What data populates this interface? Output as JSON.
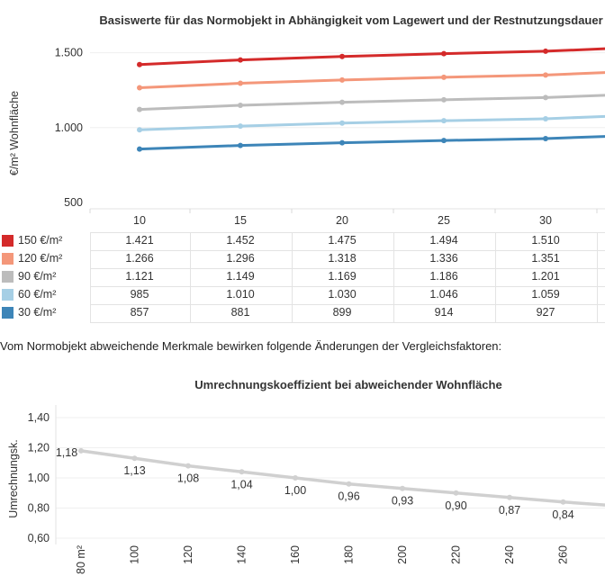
{
  "chart_data": [
    {
      "type": "line",
      "title": "Basiswerte für das Normobjekt in Abhängigkeit vom Lagewert und der Restnutzungsdauer",
      "ylabel": "€/m² Wohnfläche",
      "xlabel": "",
      "categories": [
        "10",
        "15",
        "20",
        "25",
        "30"
      ],
      "yticks": [
        "500",
        "1.000",
        "1.500"
      ],
      "ylim": [
        500,
        1500
      ],
      "right_edge_values": [
        1527,
        1368,
        1216,
        1075,
        941
      ],
      "grid": "horizontal",
      "series": [
        {
          "name": "150 €/m²",
          "color": "#d42a2a",
          "values": [
            1421,
            1452,
            1475,
            1494,
            1510
          ],
          "labels": [
            "1.421",
            "1.452",
            "1.475",
            "1.494",
            "1.510"
          ]
        },
        {
          "name": "120 €/m²",
          "color": "#f4977a",
          "values": [
            1266,
            1296,
            1318,
            1336,
            1351
          ],
          "labels": [
            "1.266",
            "1.296",
            "1.318",
            "1.336",
            "1.351"
          ]
        },
        {
          "name": "90 €/m²",
          "color": "#bcbcbc",
          "values": [
            1121,
            1149,
            1169,
            1186,
            1201
          ],
          "labels": [
            "1.121",
            "1.149",
            "1.169",
            "1.186",
            "1.201"
          ]
        },
        {
          "name": "60 €/m²",
          "color": "#a6cfe5",
          "values": [
            985,
            1010,
            1030,
            1046,
            1059
          ],
          "labels": [
            "985",
            "1.010",
            "1.030",
            "1.046",
            "1.059"
          ]
        },
        {
          "name": "30 €/m²",
          "color": "#3d85b8",
          "values": [
            857,
            881,
            899,
            914,
            927
          ],
          "labels": [
            "857",
            "881",
            "899",
            "914",
            "927"
          ]
        }
      ]
    },
    {
      "type": "line",
      "title": "Umrechnungskoeffizient bei abweichender Wohnfläche",
      "ylabel": "Umrechnungsk.",
      "xlabel": "",
      "categories": [
        "80 m²",
        "100",
        "120",
        "140",
        "160",
        "180",
        "200",
        "220",
        "240",
        "260"
      ],
      "yticks": [
        "0,60",
        "0,80",
        "1,00",
        "1,20",
        "1,40"
      ],
      "ylim": [
        0.6,
        1.4
      ],
      "right_edge_value": 0.82,
      "grid": "horizontal",
      "series": [
        {
          "color": "#d0d0d0",
          "values": [
            1.18,
            1.13,
            1.08,
            1.04,
            1.0,
            0.96,
            0.93,
            0.9,
            0.87,
            0.84
          ],
          "labels": [
            "1,18",
            "1,13",
            "1,08",
            "1,04",
            "1,00",
            "0,96",
            "0,93",
            "0,90",
            "0,87",
            "0,84"
          ]
        }
      ]
    }
  ],
  "note": "Vom Normobjekt abweichende Merkmale bewirken folgende Änderungen der Vergleichsfaktoren:"
}
